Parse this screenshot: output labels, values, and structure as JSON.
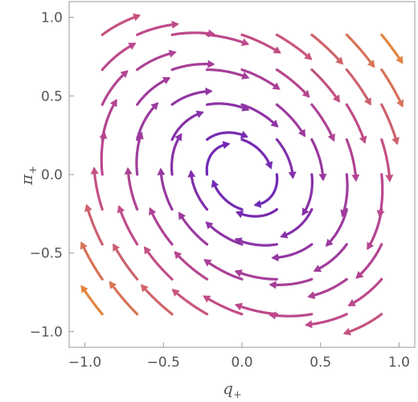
{
  "chart_data": {
    "type": "streamplot",
    "title": "",
    "xlabel": "q",
    "xlabel_subscript": "+",
    "ylabel": "π",
    "ylabel_subscript": "+",
    "xlim": [
      -1.1,
      1.1
    ],
    "ylim": [
      -1.1,
      1.1
    ],
    "x_ticks": [
      {
        "value": -1.0,
        "label": "−1.0"
      },
      {
        "value": -0.5,
        "label": "−0.5"
      },
      {
        "value": 0.0,
        "label": "0.0"
      },
      {
        "value": 0.5,
        "label": "0.5"
      },
      {
        "value": 1.0,
        "label": "1.0"
      }
    ],
    "y_ticks": [
      {
        "value": 1.0,
        "label": "1.0"
      },
      {
        "value": 0.5,
        "label": "0.5"
      },
      {
        "value": 0.0,
        "label": "0.0"
      },
      {
        "value": -0.5,
        "label": "−0.5"
      },
      {
        "value": -1.0,
        "label": "−1.0"
      }
    ],
    "grid": false,
    "flow": {
      "rotation": "clockwise",
      "center": [
        0.0,
        0.0
      ],
      "ellipse_tilt_degrees": 45,
      "ellipse_axis_ratio": 1.25
    },
    "colormap": {
      "low_speed_color": "#5a1fc0",
      "mid_speed_color": "#c04a8a",
      "high_speed_color": "#f3a21c"
    },
    "frame_color": "#9a9a9a"
  }
}
